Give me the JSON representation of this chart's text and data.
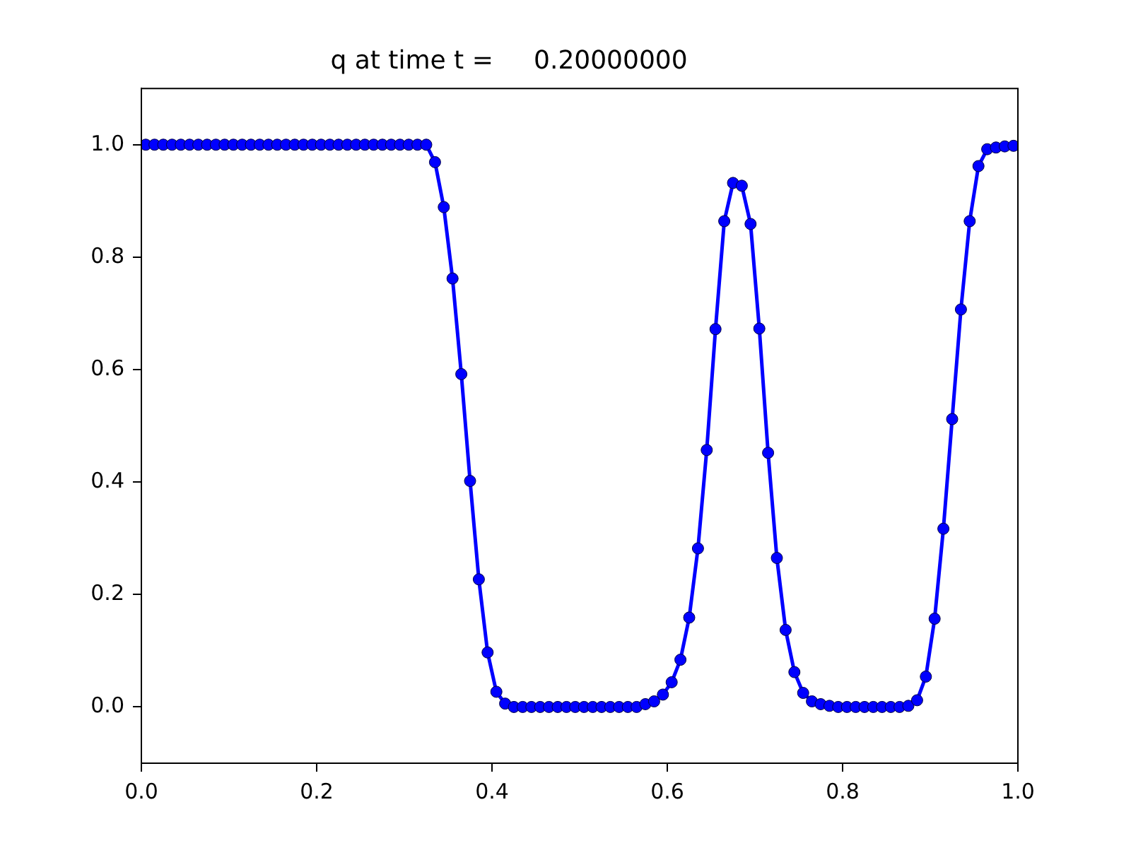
{
  "chart_data": {
    "type": "line",
    "title": "q at time t =     0.20000000",
    "x": [
      0.005,
      0.015,
      0.025,
      0.035,
      0.045,
      0.055,
      0.065,
      0.075,
      0.085,
      0.095,
      0.105,
      0.115,
      0.125,
      0.135,
      0.145,
      0.155,
      0.165,
      0.175,
      0.185,
      0.195,
      0.205,
      0.215,
      0.225,
      0.235,
      0.245,
      0.255,
      0.265,
      0.275,
      0.285,
      0.295,
      0.305,
      0.315,
      0.325,
      0.335,
      0.345,
      0.355,
      0.365,
      0.375,
      0.385,
      0.395,
      0.405,
      0.415,
      0.425,
      0.435,
      0.445,
      0.455,
      0.465,
      0.475,
      0.485,
      0.495,
      0.505,
      0.515,
      0.525,
      0.535,
      0.545,
      0.555,
      0.565,
      0.575,
      0.585,
      0.595,
      0.605,
      0.615,
      0.625,
      0.635,
      0.645,
      0.655,
      0.665,
      0.675,
      0.685,
      0.695,
      0.705,
      0.715,
      0.725,
      0.735,
      0.745,
      0.755,
      0.765,
      0.775,
      0.785,
      0.795,
      0.805,
      0.815,
      0.825,
      0.835,
      0.845,
      0.855,
      0.865,
      0.875,
      0.885,
      0.895,
      0.905,
      0.915,
      0.925,
      0.935,
      0.945,
      0.955,
      0.965,
      0.975,
      0.985,
      0.995
    ],
    "series": [
      {
        "color": "#0000ff",
        "values": [
          1,
          1,
          1,
          1,
          1,
          1,
          1,
          1,
          1,
          1,
          1,
          1,
          1,
          1,
          1,
          1,
          1,
          1,
          1,
          1,
          1,
          1,
          1,
          1,
          1,
          1,
          1,
          1,
          1,
          1,
          1,
          1,
          1,
          0.969,
          0.889,
          0.762,
          0.592,
          0.402,
          0.227,
          0.097,
          0.027,
          0.006,
          0,
          0,
          0,
          0,
          0,
          0,
          0,
          0,
          0,
          0,
          0,
          0,
          0,
          0,
          0,
          0.005,
          0.01,
          0.022,
          0.044,
          0.084,
          0.159,
          0.282,
          0.457,
          0.672,
          0.864,
          0.932,
          0.927,
          0.859,
          0.673,
          0.452,
          0.265,
          0.137,
          0.062,
          0.025,
          0.01,
          0.005,
          0.002,
          0,
          0,
          0,
          0,
          0,
          0,
          0,
          0,
          0.002,
          0.012,
          0.054,
          0.157,
          0.317,
          0.512,
          0.707,
          0.864,
          0.962,
          0.992,
          0.995,
          0.997,
          0.998
        ]
      }
    ],
    "xlim": [
      0,
      1
    ],
    "xticks": [
      {
        "value": 0,
        "label": "0.0"
      },
      0.2,
      0.4,
      0.6,
      0.8,
      {
        "value": 1,
        "label": "1.0"
      }
    ],
    "ylim": [
      -0.1,
      1.1
    ],
    "yticks": [
      {
        "value": 0,
        "label": "0.0"
      },
      0.2,
      0.4,
      0.6,
      0.8,
      {
        "value": 1,
        "label": "1.0"
      }
    ],
    "marker": "circle",
    "line_style": "solid",
    "grid": false,
    "legend": false
  }
}
